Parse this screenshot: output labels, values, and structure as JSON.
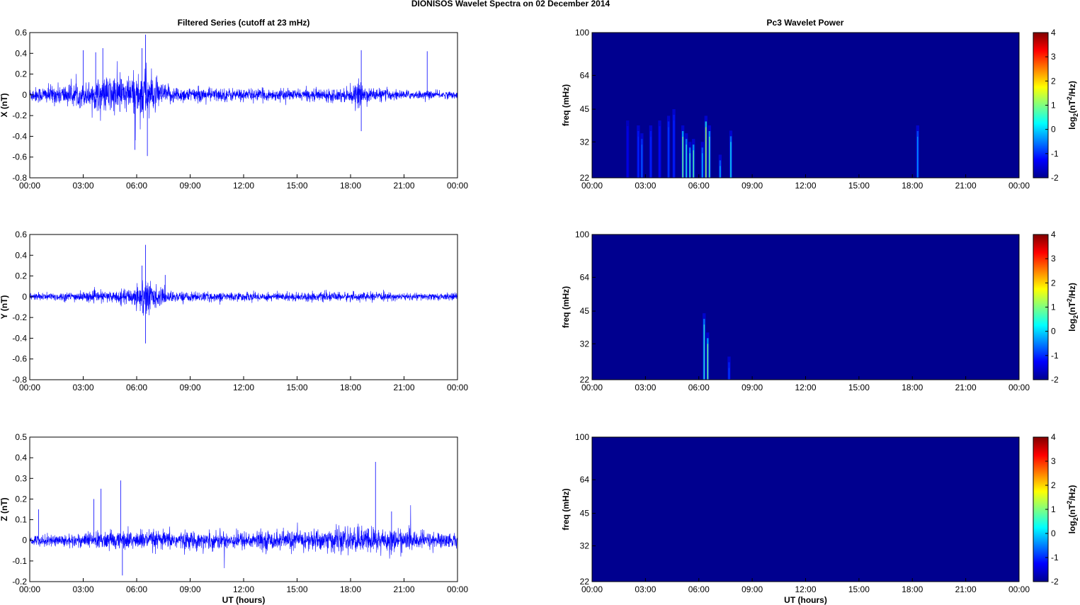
{
  "figure": {
    "title": "DIONISOS Wavelet Spectra on 02 December  2014",
    "left_title": "Filtered Series (cutoff at 23 mHz)",
    "right_title": "Pc3 Wavelet Power",
    "x_label": "UT (hours)",
    "spec_ylabel": "freq (mHz)",
    "colorbar_label": "log2(nT2/Hz)"
  },
  "colors": {
    "series": "#0000ff",
    "background": "#00008f",
    "axes": "#000000"
  },
  "time_ticks": [
    "00:00",
    "03:00",
    "06:00",
    "09:00",
    "12:00",
    "15:00",
    "18:00",
    "21:00",
    "00:00"
  ],
  "freq_ticks": [
    22,
    32,
    45,
    64,
    100
  ],
  "colorbar_ticks": [
    4,
    3,
    2,
    1,
    0,
    -1,
    -2
  ],
  "chart_data": [
    {
      "type": "line",
      "name": "x-series",
      "title": "Filtered Series (cutoff at 23 mHz)",
      "xlabel": "",
      "ylabel": "X (nT)",
      "xlim": [
        0,
        24
      ],
      "ylim": [
        -0.8,
        0.6
      ],
      "yticks": [
        0.6,
        0.4,
        0.2,
        0,
        -0.2,
        -0.4,
        -0.6,
        -0.8
      ],
      "env_hours": [
        0,
        1,
        2,
        3,
        4,
        4.5,
        5,
        5.5,
        6,
        6.5,
        7,
        7.5,
        8,
        9,
        10,
        12,
        15,
        18,
        18.5,
        19,
        21,
        24
      ],
      "env_amp": [
        0.08,
        0.1,
        0.12,
        0.13,
        0.18,
        0.22,
        0.24,
        0.2,
        0.25,
        0.32,
        0.18,
        0.12,
        0.1,
        0.08,
        0.08,
        0.07,
        0.06,
        0.08,
        0.15,
        0.08,
        0.05,
        0.04
      ],
      "spikes": [
        [
          6.5,
          0.58
        ],
        [
          6.6,
          -0.59
        ],
        [
          6.3,
          0.45
        ],
        [
          18.6,
          0.43
        ],
        [
          18.6,
          -0.35
        ],
        [
          3.0,
          0.43
        ],
        [
          22.3,
          0.42
        ],
        [
          5.9,
          -0.53
        ],
        [
          4.1,
          0.45
        ],
        [
          3.7,
          0.41
        ]
      ]
    },
    {
      "type": "line",
      "name": "y-series",
      "title": "",
      "xlabel": "",
      "ylabel": "Y (nT)",
      "xlim": [
        0,
        24
      ],
      "ylim": [
        -0.8,
        0.6
      ],
      "yticks": [
        0.6,
        0.4,
        0.2,
        0,
        -0.2,
        -0.4,
        -0.6,
        -0.8
      ],
      "env_hours": [
        0,
        2,
        4,
        5,
        5.8,
        6.3,
        6.7,
        7.2,
        8,
        10,
        12,
        15,
        18,
        21,
        24
      ],
      "env_amp": [
        0.04,
        0.05,
        0.06,
        0.07,
        0.1,
        0.22,
        0.2,
        0.1,
        0.06,
        0.05,
        0.05,
        0.05,
        0.05,
        0.04,
        0.04
      ],
      "spikes": [
        [
          6.5,
          0.5
        ],
        [
          6.5,
          -0.45
        ],
        [
          6.3,
          0.3
        ],
        [
          7.6,
          0.21
        ]
      ]
    },
    {
      "type": "line",
      "name": "z-series",
      "title": "",
      "xlabel": "UT (hours)",
      "ylabel": "Z (nT)",
      "xlim": [
        0,
        24
      ],
      "ylim": [
        -0.2,
        0.5
      ],
      "yticks": [
        0.5,
        0.4,
        0.3,
        0.2,
        0.1,
        0,
        -0.1,
        -0.2
      ],
      "env_hours": [
        0,
        2,
        4,
        6,
        8,
        10,
        12,
        14,
        16,
        17,
        18,
        19,
        20,
        21,
        22,
        24
      ],
      "env_amp": [
        0.03,
        0.035,
        0.05,
        0.055,
        0.05,
        0.05,
        0.05,
        0.055,
        0.06,
        0.07,
        0.07,
        0.075,
        0.07,
        0.06,
        0.05,
        0.04
      ],
      "spikes": [
        [
          19.4,
          0.38
        ],
        [
          5.1,
          0.29
        ],
        [
          4.0,
          0.25
        ],
        [
          0.5,
          0.15
        ],
        [
          3.6,
          0.2
        ],
        [
          5.2,
          -0.17
        ],
        [
          20.3,
          0.14
        ]
      ]
    },
    {
      "type": "heatmap",
      "name": "x-power",
      "title": "Pc3 Wavelet Power",
      "xlabel": "",
      "ylabel": "freq (mHz)",
      "xlim": [
        0,
        24
      ],
      "ylim": [
        22,
        100
      ],
      "clim": [
        -2,
        4
      ],
      "bursts": [
        [
          2.0,
          0.06,
          40,
          -1.4
        ],
        [
          2.6,
          0.05,
          38,
          -1.0
        ],
        [
          2.8,
          0.06,
          35,
          -0.6
        ],
        [
          3.3,
          0.05,
          38,
          -1.0
        ],
        [
          3.8,
          0.05,
          40,
          -1.2
        ],
        [
          4.3,
          0.06,
          42,
          -0.8
        ],
        [
          4.6,
          0.05,
          45,
          -1.0
        ],
        [
          5.1,
          0.07,
          38,
          1.2
        ],
        [
          5.3,
          0.06,
          35,
          0.6
        ],
        [
          5.5,
          0.06,
          32,
          0.8
        ],
        [
          5.7,
          0.05,
          33,
          1.0
        ],
        [
          6.2,
          0.06,
          32,
          0.0
        ],
        [
          6.4,
          0.07,
          42,
          2.0
        ],
        [
          6.6,
          0.05,
          38,
          1.0
        ],
        [
          7.2,
          0.05,
          28,
          0.0
        ],
        [
          7.8,
          0.06,
          36,
          0.4
        ],
        [
          18.3,
          0.06,
          38,
          -0.2
        ]
      ]
    },
    {
      "type": "heatmap",
      "name": "y-power",
      "title": "",
      "xlabel": "",
      "ylabel": "freq (mHz)",
      "xlim": [
        0,
        24
      ],
      "ylim": [
        22,
        100
      ],
      "clim": [
        -2,
        4
      ],
      "bursts": [
        [
          6.3,
          0.07,
          44,
          0.6
        ],
        [
          6.5,
          0.05,
          36,
          1.2
        ],
        [
          7.7,
          0.05,
          28,
          -0.8
        ]
      ]
    },
    {
      "type": "heatmap",
      "name": "z-power",
      "title": "",
      "xlabel": "UT (hours)",
      "ylabel": "freq (mHz)",
      "xlim": [
        0,
        24
      ],
      "ylim": [
        22,
        100
      ],
      "clim": [
        -2,
        4
      ],
      "bursts": []
    }
  ]
}
